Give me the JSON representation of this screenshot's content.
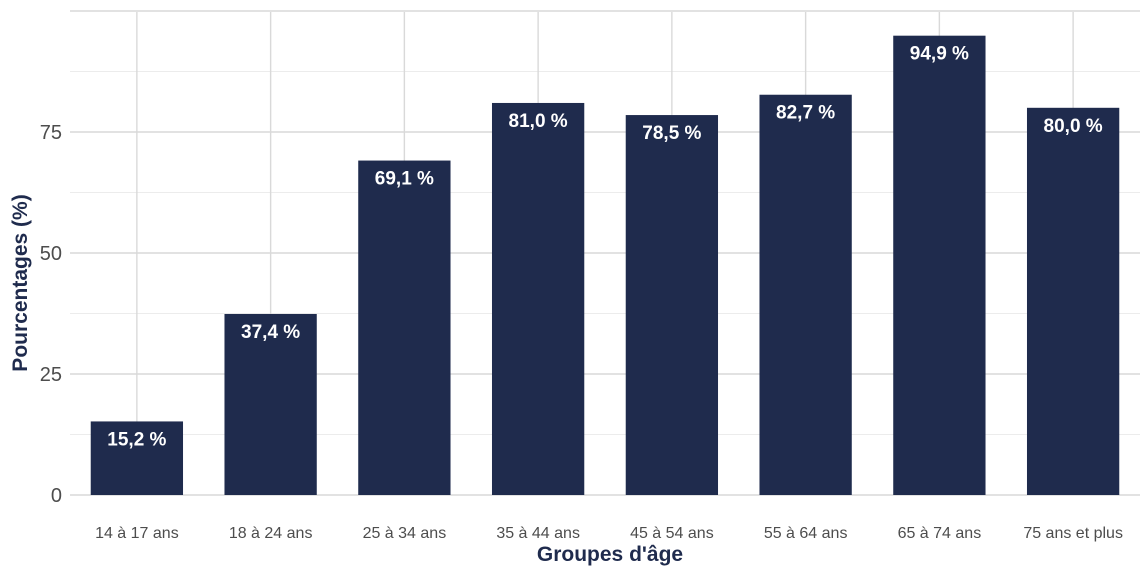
{
  "chart_data": {
    "type": "bar",
    "categories": [
      "14 à 17 ans",
      "18 à 24 ans",
      "25 à 34 ans",
      "35 à 44 ans",
      "45 à 54 ans",
      "55 à 64 ans",
      "65 à 74 ans",
      "75 ans et plus"
    ],
    "values": [
      15.2,
      37.4,
      69.1,
      81.0,
      78.5,
      82.7,
      94.9,
      80.0
    ],
    "data_labels": [
      "15,2 %",
      "37,4 %",
      "69,1 %",
      "81,0 %",
      "78,5 %",
      "82,7 %",
      "94,9 %",
      "80,0 %"
    ],
    "xlabel": "Groupes d'âge",
    "ylabel": "Pourcentages (%)",
    "yticks": [
      "0",
      "25",
      "50",
      "75"
    ],
    "ylim": [
      0,
      100
    ],
    "grid": true,
    "colors": {
      "bar": "#1f2b4d",
      "label": "#ffffff",
      "axis_title": "#1f2b4d"
    }
  }
}
